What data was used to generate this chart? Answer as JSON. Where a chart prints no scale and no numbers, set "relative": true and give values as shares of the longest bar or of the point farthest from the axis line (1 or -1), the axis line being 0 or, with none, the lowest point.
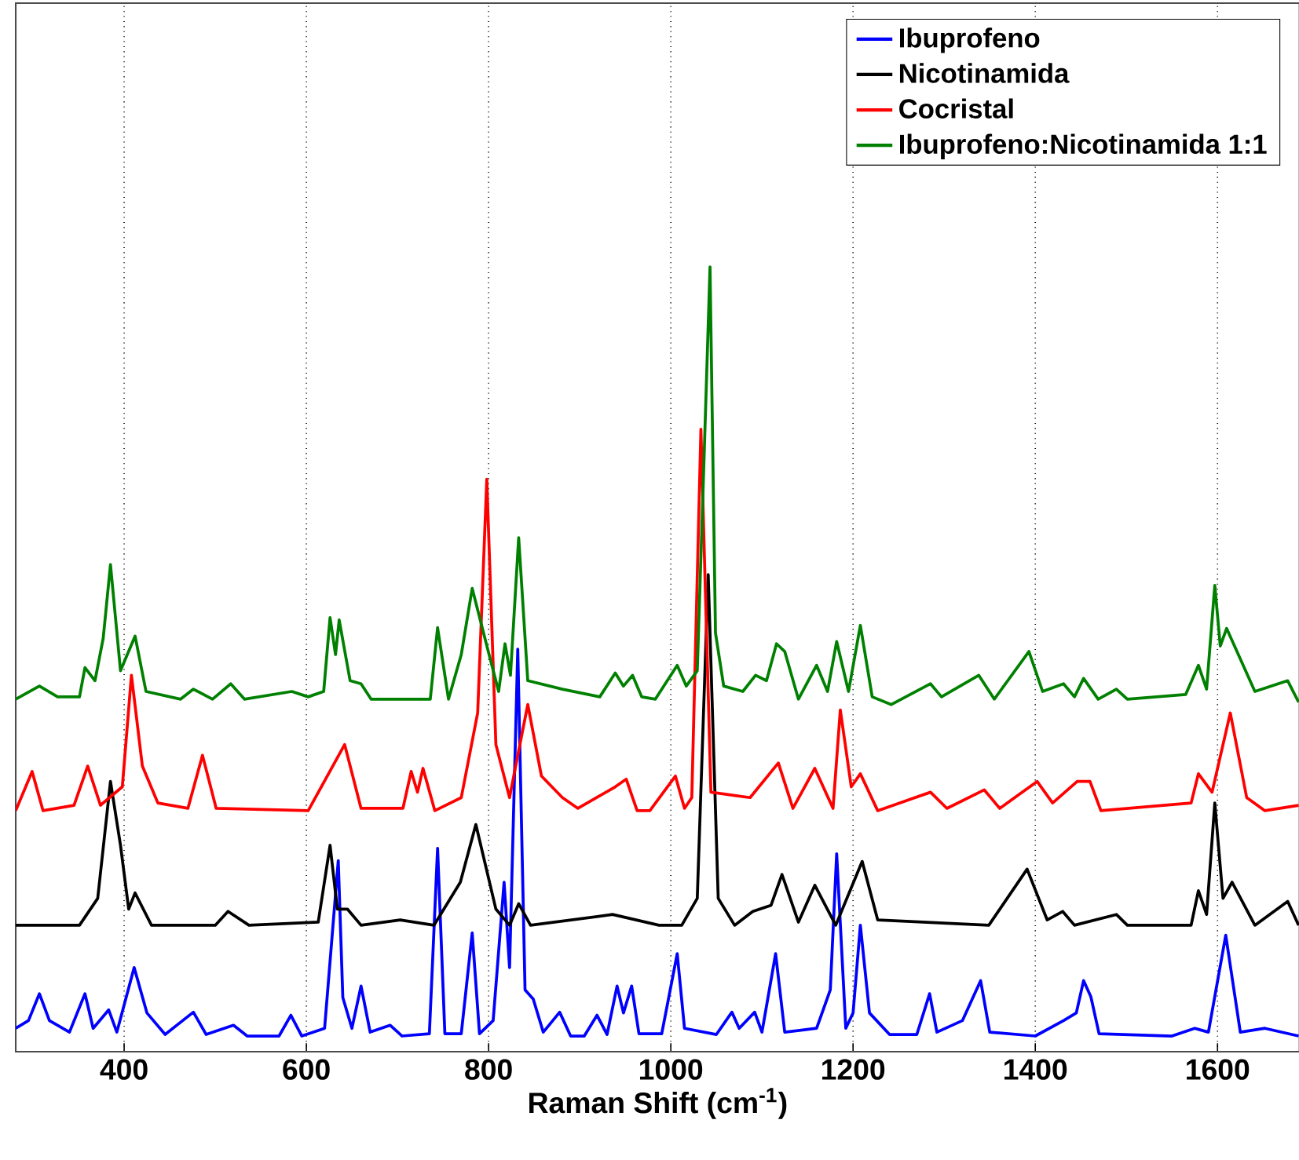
{
  "chart_data": {
    "type": "line",
    "xlabel": "**Raman Shift (cm$^{-1}$)**",
    "relative": true,
    "xlim": [
      281,
      1690
    ],
    "xticks": [
      400,
      600,
      800,
      1000,
      1200,
      1400,
      1600
    ],
    "grid": "x",
    "legend": "top right",
    "series": [
      {
        "name": "Ibuprofeno",
        "color": "#0000ff",
        "x": [
          281,
          295,
          307,
          318,
          340,
          357,
          366,
          383,
          392,
          411,
          425,
          445,
          476,
          490,
          520,
          535,
          570,
          583,
          595,
          620,
          635,
          640,
          650,
          660,
          670,
          692,
          705,
          735,
          744,
          752,
          770,
          782,
          790,
          805,
          817,
          823,
          832,
          840,
          849,
          860,
          878,
          890,
          905,
          919,
          930,
          941,
          948,
          957,
          965,
          990,
          1007,
          1015,
          1050,
          1067,
          1075,
          1092,
          1100,
          1115,
          1125,
          1160,
          1175,
          1182,
          1192,
          1200,
          1208,
          1218,
          1240,
          1270,
          1284,
          1292,
          1320,
          1340,
          1350,
          1400,
          1431,
          1445,
          1453,
          1461,
          1470,
          1550,
          1575,
          1590,
          1609,
          1625,
          1652,
          1689
        ],
        "values": [
          0.01,
          0.02,
          0.055,
          0.02,
          0.005,
          0.055,
          0.01,
          0.034,
          0.005,
          0.089,
          0.03,
          0.002,
          0.031,
          0.002,
          0.014,
          0,
          0,
          0.027,
          0,
          0.01,
          0.228,
          0.05,
          0.01,
          0.065,
          0.005,
          0.014,
          0,
          0.003,
          0.244,
          0.003,
          0.003,
          0.134,
          0.003,
          0.02,
          0.2,
          0.089,
          0.503,
          0.06,
          0.048,
          0.005,
          0.031,
          0,
          0,
          0.027,
          0.002,
          0.065,
          0.03,
          0.065,
          0.003,
          0.003,
          0.107,
          0.01,
          0.002,
          0.031,
          0.01,
          0.031,
          0.005,
          0.107,
          0.005,
          0.01,
          0.06,
          0.237,
          0.01,
          0.03,
          0.144,
          0.03,
          0.002,
          0.002,
          0.055,
          0.005,
          0.02,
          0.072,
          0.005,
          0,
          0.02,
          0.03,
          0.072,
          0.051,
          0.003,
          0,
          0.01,
          0.005,
          0.131,
          0.005,
          0.01,
          0
        ]
      },
      {
        "name": "Nicotinamida",
        "color": "#000000",
        "x": [
          281,
          351,
          371,
          385,
          396,
          405,
          412,
          430,
          500,
          514,
          537,
          613,
          626,
          634,
          645,
          660,
          703,
          740,
          769,
          786,
          808,
          823,
          833,
          846,
          936,
          987,
          1012,
          1029,
          1041,
          1052,
          1070,
          1090,
          1110,
          1122,
          1140,
          1158,
          1181,
          1210,
          1227,
          1349,
          1391,
          1413,
          1430,
          1443,
          1489,
          1501,
          1571,
          1579,
          1588,
          1597,
          1606,
          1616,
          1641,
          1677,
          1689
        ],
        "values": [
          0.144,
          0.144,
          0.179,
          0.331,
          0.248,
          0.165,
          0.186,
          0.144,
          0.144,
          0.162,
          0.144,
          0.148,
          0.248,
          0.165,
          0.165,
          0.144,
          0.151,
          0.144,
          0.2,
          0.275,
          0.165,
          0.144,
          0.172,
          0.144,
          0.158,
          0.144,
          0.144,
          0.179,
          0.6,
          0.179,
          0.144,
          0.162,
          0.17,
          0.21,
          0.148,
          0.196,
          0.144,
          0.227,
          0.151,
          0.144,
          0.217,
          0.151,
          0.162,
          0.144,
          0.158,
          0.144,
          0.144,
          0.189,
          0.158,
          0.303,
          0.179,
          0.2,
          0.144,
          0.175,
          0.144
        ]
      },
      {
        "name": "Cocristal",
        "color": "#ff0000",
        "x": [
          281,
          299,
          311,
          345,
          360,
          374,
          398,
          408,
          420,
          437,
          470,
          486,
          501,
          602,
          642,
          660,
          706,
          715,
          722,
          728,
          741,
          770,
          788,
          798,
          808,
          823,
          832,
          843,
          858,
          881,
          898,
          939,
          951,
          963,
          977,
          1005,
          1015,
          1023,
          1033,
          1044,
          1087,
          1118,
          1134,
          1158,
          1178,
          1186,
          1198,
          1208,
          1227,
          1285,
          1303,
          1344,
          1361,
          1402,
          1419,
          1446,
          1460,
          1472,
          1571,
          1579,
          1594,
          1614,
          1632,
          1652,
          1689
        ],
        "values": [
          0.293,
          0.344,
          0.293,
          0.3,
          0.351,
          0.3,
          0.324,
          0.469,
          0.351,
          0.303,
          0.296,
          0.365,
          0.296,
          0.293,
          0.379,
          0.296,
          0.296,
          0.344,
          0.317,
          0.348,
          0.293,
          0.31,
          0.42,
          0.724,
          0.379,
          0.31,
          0.365,
          0.431,
          0.338,
          0.31,
          0.296,
          0.324,
          0.334,
          0.293,
          0.293,
          0.338,
          0.296,
          0.31,
          0.789,
          0.317,
          0.31,
          0.355,
          0.296,
          0.348,
          0.296,
          0.424,
          0.324,
          0.341,
          0.293,
          0.317,
          0.296,
          0.32,
          0.296,
          0.331,
          0.303,
          0.331,
          0.331,
          0.293,
          0.303,
          0.341,
          0.317,
          0.42,
          0.31,
          0.293,
          0.3
        ]
      },
      {
        "name": "Ibuprofeno:Nicotinamida 1:1",
        "color": "#008000",
        "x": [
          281,
          307,
          327,
          351,
          357,
          368,
          377,
          385,
          396,
          412,
          424,
          462,
          476,
          497,
          517,
          532,
          584,
          602,
          619,
          626,
          632,
          636,
          648,
          660,
          671,
          736,
          744,
          756,
          770,
          782,
          799,
          811,
          818,
          824,
          833,
          843,
          881,
          922,
          939,
          948,
          958,
          968,
          983,
          1007,
          1017,
          1029,
          1035,
          1043,
          1049,
          1058,
          1079,
          1093,
          1105,
          1116,
          1125,
          1140,
          1160,
          1172,
          1182,
          1195,
          1208,
          1221,
          1242,
          1285,
          1297,
          1338,
          1355,
          1393,
          1408,
          1431,
          1443,
          1453,
          1469,
          1489,
          1501,
          1565,
          1579,
          1588,
          1597,
          1603,
          1610,
          1641,
          1677,
          1689
        ],
        "values": [
          0.438,
          0.455,
          0.441,
          0.441,
          0.479,
          0.462,
          0.517,
          0.613,
          0.475,
          0.52,
          0.448,
          0.438,
          0.451,
          0.438,
          0.458,
          0.438,
          0.448,
          0.441,
          0.448,
          0.544,
          0.496,
          0.541,
          0.462,
          0.458,
          0.438,
          0.438,
          0.531,
          0.438,
          0.496,
          0.582,
          0.503,
          0.448,
          0.51,
          0.469,
          0.648,
          0.462,
          0.451,
          0.441,
          0.472,
          0.455,
          0.469,
          0.441,
          0.438,
          0.482,
          0.455,
          0.475,
          0.696,
          1.0,
          0.524,
          0.455,
          0.448,
          0.469,
          0.462,
          0.51,
          0.5,
          0.438,
          0.482,
          0.448,
          0.513,
          0.448,
          0.534,
          0.441,
          0.431,
          0.458,
          0.441,
          0.469,
          0.438,
          0.5,
          0.448,
          0.458,
          0.441,
          0.465,
          0.438,
          0.451,
          0.438,
          0.444,
          0.482,
          0.451,
          0.586,
          0.507,
          0.53,
          0.448,
          0.462,
          0.434
        ]
      }
    ]
  }
}
